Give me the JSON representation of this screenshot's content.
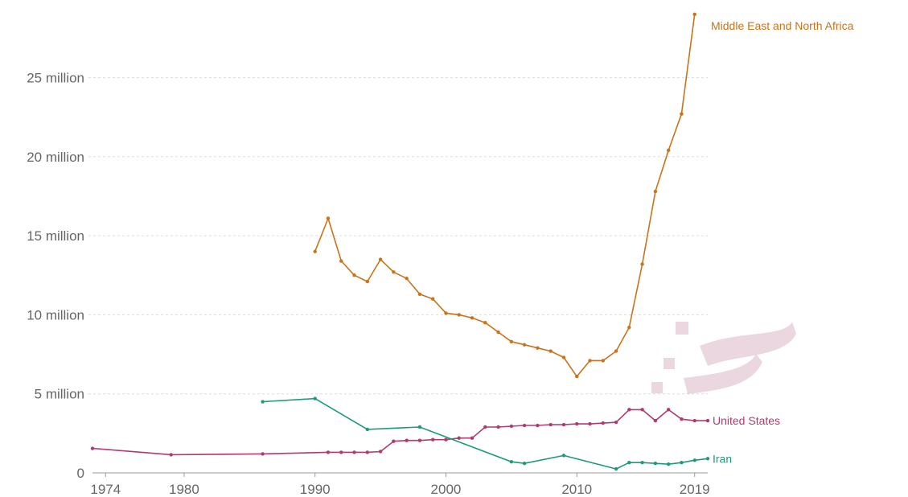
{
  "chart_data": {
    "type": "line",
    "title": "",
    "xlabel": "",
    "ylabel": "",
    "xlim": [
      1973,
      2020
    ],
    "ylim": [
      0,
      29500000
    ],
    "x_ticks": [
      1974,
      1980,
      1990,
      2000,
      2010,
      2019
    ],
    "x_tick_labels": [
      "1974",
      "1980",
      "1990",
      "2000",
      "2010",
      "2019"
    ],
    "y_ticks": [
      0,
      5000000,
      10000000,
      15000000,
      20000000,
      25000000
    ],
    "y_tick_labels": [
      "0",
      "5 million",
      "10 million",
      "15 million",
      "20 million",
      "25 million"
    ],
    "grid": true,
    "series": [
      {
        "name": "Middle East and North Africa",
        "color": "#c9731a",
        "points": [
          [
            1990,
            14000000
          ],
          [
            1991,
            16100000
          ],
          [
            1992,
            13400000
          ],
          [
            1993,
            12500000
          ],
          [
            1994,
            12100000
          ],
          [
            1995,
            13500000
          ],
          [
            1996,
            12700000
          ],
          [
            1997,
            12300000
          ],
          [
            1998,
            11300000
          ],
          [
            1999,
            11000000
          ],
          [
            2000,
            10100000
          ],
          [
            2001,
            10000000
          ],
          [
            2002,
            9800000
          ],
          [
            2003,
            9500000
          ],
          [
            2004,
            8900000
          ],
          [
            2005,
            8300000
          ],
          [
            2006,
            8100000
          ],
          [
            2007,
            7900000
          ],
          [
            2008,
            7700000
          ],
          [
            2009,
            7300000
          ],
          [
            2010,
            6100000
          ],
          [
            2011,
            7100000
          ],
          [
            2012,
            7100000
          ],
          [
            2013,
            7700000
          ],
          [
            2014,
            9200000
          ],
          [
            2015,
            13200000
          ],
          [
            2016,
            17800000
          ],
          [
            2017,
            20400000
          ],
          [
            2018,
            22700000
          ],
          [
            2019,
            29000000
          ]
        ]
      },
      {
        "name": "United States",
        "color": "#b03a72",
        "points": [
          [
            1973,
            1550000
          ],
          [
            1979,
            1150000
          ],
          [
            1986,
            1200000
          ],
          [
            1991,
            1300000
          ],
          [
            1992,
            1300000
          ],
          [
            1993,
            1300000
          ],
          [
            1994,
            1300000
          ],
          [
            1995,
            1350000
          ],
          [
            1996,
            2000000
          ],
          [
            1997,
            2050000
          ],
          [
            1998,
            2050000
          ],
          [
            1999,
            2100000
          ],
          [
            2000,
            2100000
          ],
          [
            2001,
            2200000
          ],
          [
            2002,
            2200000
          ],
          [
            2003,
            2900000
          ],
          [
            2004,
            2900000
          ],
          [
            2005,
            2950000
          ],
          [
            2006,
            3000000
          ],
          [
            2007,
            3000000
          ],
          [
            2008,
            3050000
          ],
          [
            2009,
            3050000
          ],
          [
            2010,
            3100000
          ],
          [
            2011,
            3100000
          ],
          [
            2012,
            3150000
          ],
          [
            2013,
            3200000
          ],
          [
            2014,
            4000000
          ],
          [
            2015,
            4000000
          ],
          [
            2016,
            3300000
          ],
          [
            2017,
            4000000
          ],
          [
            2018,
            3400000
          ],
          [
            2019,
            3300000
          ],
          [
            2020,
            3300000
          ]
        ]
      },
      {
        "name": "Iran",
        "color": "#1d9a7a",
        "points": [
          [
            1986,
            4500000
          ],
          [
            1990,
            4700000
          ],
          [
            1994,
            2750000
          ],
          [
            1998,
            2900000
          ],
          [
            2005,
            700000
          ],
          [
            2006,
            600000
          ],
          [
            2009,
            1100000
          ],
          [
            2013,
            250000
          ],
          [
            2014,
            650000
          ],
          [
            2015,
            650000
          ],
          [
            2016,
            600000
          ],
          [
            2017,
            550000
          ],
          [
            2018,
            650000
          ],
          [
            2019,
            800000
          ],
          [
            2020,
            900000
          ]
        ]
      }
    ]
  }
}
